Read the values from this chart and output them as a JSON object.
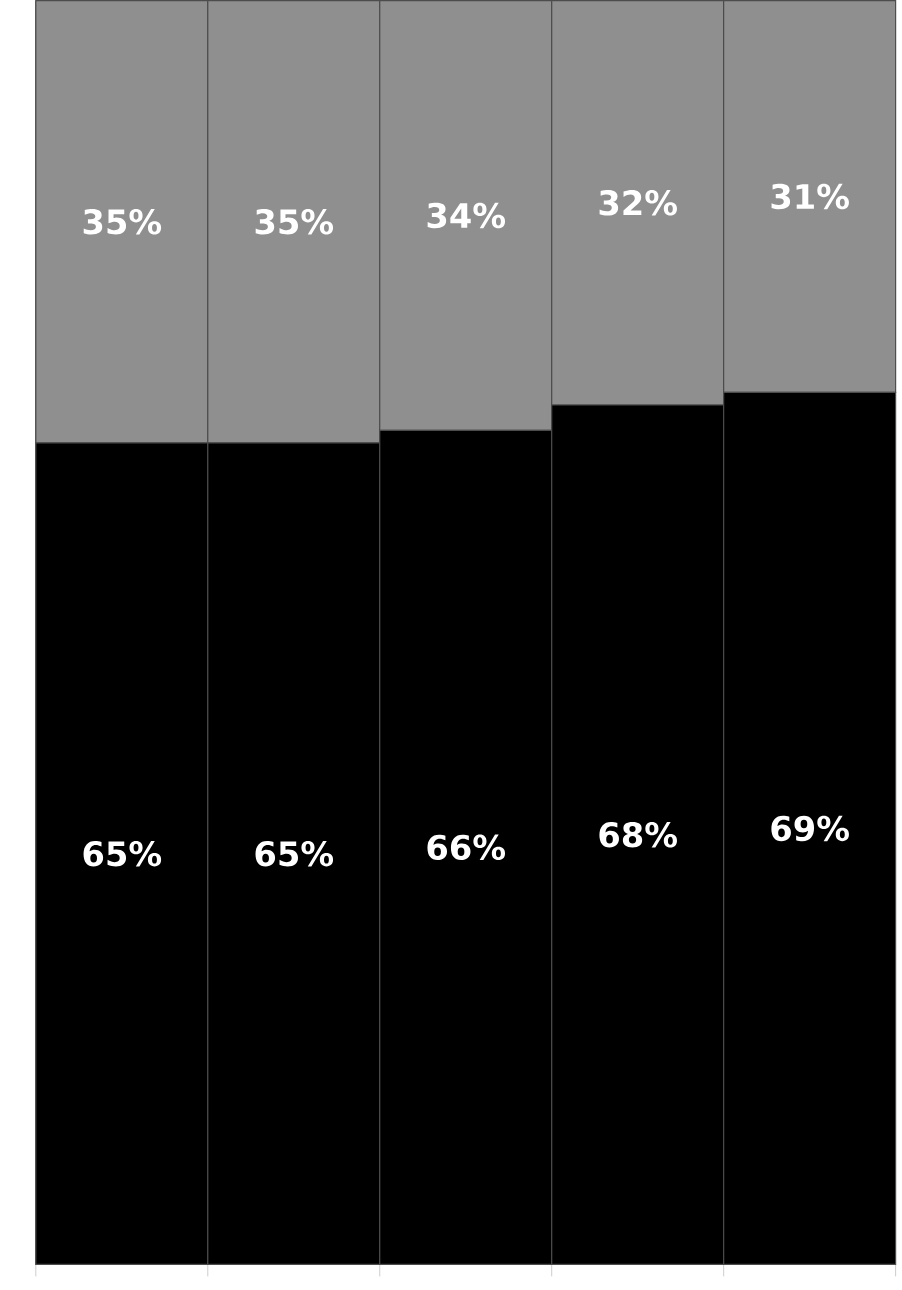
{
  "chart_data": {
    "type": "bar",
    "stacked": true,
    "categories": [
      null,
      null,
      null,
      null,
      null
    ],
    "tick_labels": false,
    "series": [
      {
        "color": "#000000",
        "values": [
          65,
          65,
          66,
          68,
          69
        ],
        "value_labels": [
          "65%",
          "65%",
          "66%",
          "68%",
          "69%"
        ]
      },
      {
        "color": "#8f8f8f",
        "values": [
          35,
          35,
          34,
          32,
          31
        ],
        "value_labels": [
          "35%",
          "35%",
          "34%",
          "32%",
          "31%"
        ]
      }
    ]
  }
}
